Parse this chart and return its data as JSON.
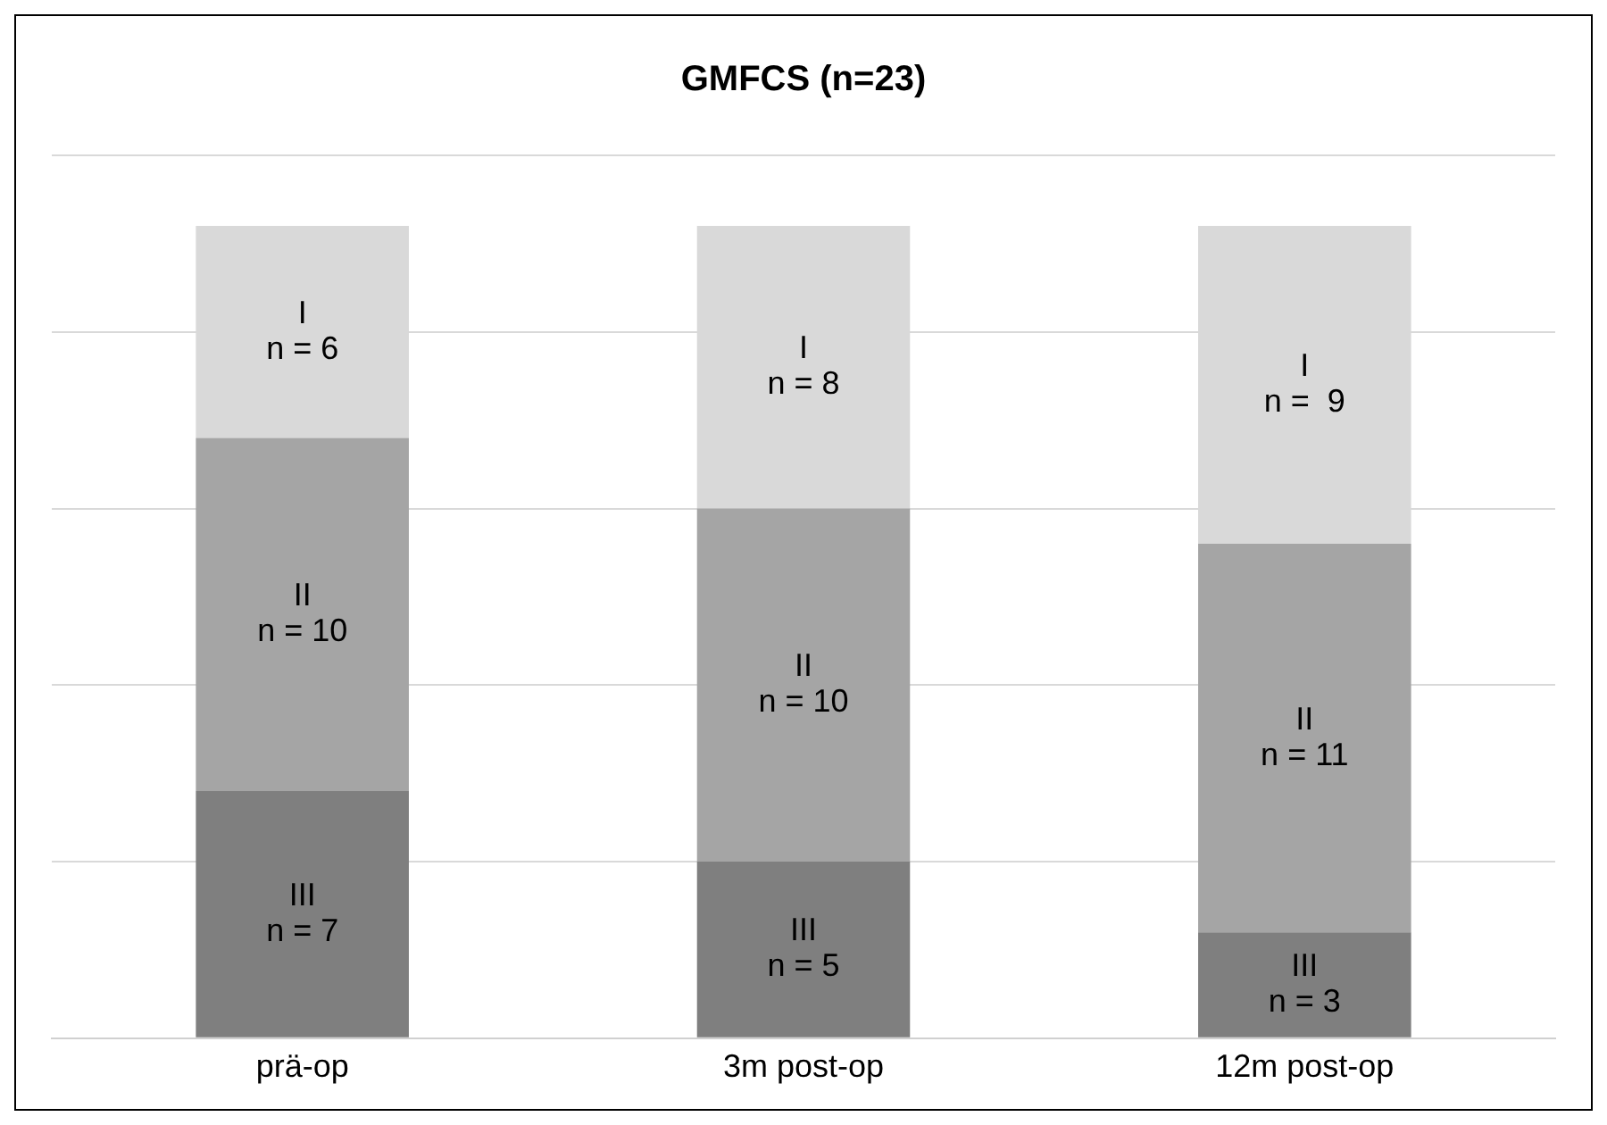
{
  "chart_data": {
    "type": "bar",
    "title": "GMFCS (n=23)",
    "categories": [
      "prä-op",
      "3m post-op",
      "12m post-op"
    ],
    "stacked": true,
    "series": [
      {
        "name": "III",
        "color": "#7f7f7f",
        "values": [
          7,
          5,
          3
        ],
        "value_labels": [
          "n = 7",
          "n = 5",
          "n = 3"
        ]
      },
      {
        "name": "II",
        "color": "#a5a5a5",
        "values": [
          10,
          10,
          11
        ],
        "value_labels": [
          "n = 10",
          "n = 10",
          "n = 11"
        ]
      },
      {
        "name": "I",
        "color": "#d9d9d9",
        "values": [
          6,
          8,
          9
        ],
        "value_labels": [
          "n = 6",
          "n = 8",
          "n =  9"
        ]
      }
    ],
    "ylim": [
      0,
      25
    ],
    "yticks": [
      {
        "value": 0,
        "label": null
      },
      {
        "value": 5,
        "label": null
      },
      {
        "value": 10,
        "label": null
      },
      {
        "value": 15,
        "label": null
      },
      {
        "value": 20,
        "label": null
      },
      {
        "value": 25,
        "label": null
      }
    ],
    "tick_labels": "x",
    "grid": "y",
    "legend": false
  }
}
